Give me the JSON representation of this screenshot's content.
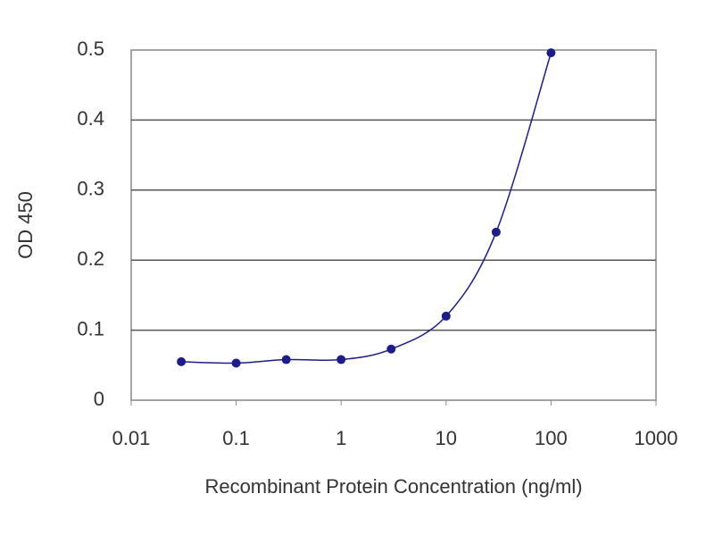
{
  "chart_data": {
    "type": "line",
    "x_label": "Recombinant Protein Concentration (ng/ml)",
    "y_label": "OD 450",
    "x": [
      0.03,
      0.1,
      0.3,
      1,
      3,
      10,
      30,
      100
    ],
    "series": [
      {
        "color": "#1c1c8a",
        "values": [
          0.055,
          0.053,
          0.058,
          0.058,
          0.073,
          0.12,
          0.24,
          0.496
        ]
      }
    ],
    "x_log": true,
    "xlim": [
      0.01,
      1000
    ],
    "xticks": [
      0.01,
      0.1,
      1,
      10,
      100,
      1000
    ],
    "ylim": [
      0,
      0.5
    ],
    "yticks": [
      0,
      0.1,
      0.2,
      0.3,
      0.4,
      0.5
    ],
    "grid": true
  }
}
